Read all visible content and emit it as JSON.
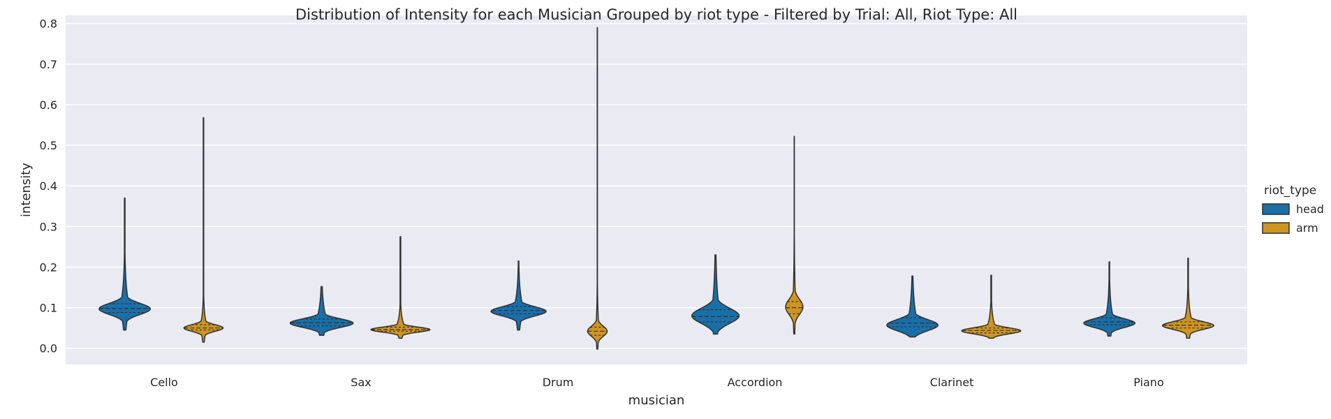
{
  "chart_data": {
    "type": "violin",
    "title": "Distribution of Intensity for each Musician Grouped by riot type - Filtered by Trial: All, Riot Type: All",
    "xlabel": "musician",
    "ylabel": "intensity",
    "ylim": [
      -0.04,
      0.82
    ],
    "yticks": [
      0.0,
      0.1,
      0.2,
      0.3,
      0.4,
      0.5,
      0.6,
      0.7,
      0.8
    ],
    "ytick_labels": [
      "0.0",
      "0.1",
      "0.2",
      "0.3",
      "0.4",
      "0.5",
      "0.6",
      "0.7",
      "0.8"
    ],
    "categories": [
      "Cello",
      "Sax",
      "Drum",
      "Accordion",
      "Clarinet",
      "Piano"
    ],
    "grid": true,
    "legend": {
      "title": "riot_type",
      "placement": "right",
      "entries": [
        {
          "name": "head",
          "color": "#1f77b4"
        },
        {
          "name": "arm",
          "color": "#d19a26"
        }
      ]
    },
    "colors": {
      "head": "#1a6fa8",
      "arm": "#cf9522",
      "background": "#eaeaf2",
      "grid": "#ffffff",
      "outline": "#2f2f2f"
    },
    "series": [
      {
        "name": "head",
        "violins": [
          {
            "min": 0.045,
            "q1": 0.088,
            "median": 0.098,
            "q3": 0.11,
            "max": 0.37,
            "mode": 0.097,
            "width": 0.65
          },
          {
            "min": 0.032,
            "q1": 0.055,
            "median": 0.063,
            "q3": 0.072,
            "max": 0.152,
            "mode": 0.062,
            "width": 0.8
          },
          {
            "min": 0.045,
            "q1": 0.085,
            "median": 0.093,
            "q3": 0.103,
            "max": 0.215,
            "mode": 0.091,
            "width": 0.7
          },
          {
            "min": 0.035,
            "q1": 0.065,
            "median": 0.078,
            "q3": 0.095,
            "max": 0.23,
            "mode": 0.08,
            "width": 0.6
          },
          {
            "min": 0.028,
            "q1": 0.053,
            "median": 0.062,
            "q3": 0.075,
            "max": 0.178,
            "mode": 0.057,
            "width": 0.65
          },
          {
            "min": 0.03,
            "q1": 0.058,
            "median": 0.065,
            "q3": 0.075,
            "max": 0.213,
            "mode": 0.062,
            "width": 0.65
          }
        ]
      },
      {
        "name": "arm",
        "violins": [
          {
            "min": 0.015,
            "q1": 0.045,
            "median": 0.05,
            "q3": 0.058,
            "max": 0.568,
            "mode": 0.05,
            "width": 0.5
          },
          {
            "min": 0.025,
            "q1": 0.042,
            "median": 0.046,
            "q3": 0.052,
            "max": 0.275,
            "mode": 0.046,
            "width": 0.75
          },
          {
            "min": -0.002,
            "q1": 0.032,
            "median": 0.042,
            "q3": 0.052,
            "max": 0.79,
            "mode": 0.042,
            "width": 0.25
          },
          {
            "min": 0.035,
            "q1": 0.085,
            "median": 0.1,
            "q3": 0.115,
            "max": 0.522,
            "mode": 0.102,
            "width": 0.22
          },
          {
            "min": 0.025,
            "q1": 0.038,
            "median": 0.044,
            "q3": 0.05,
            "max": 0.18,
            "mode": 0.043,
            "width": 0.75
          },
          {
            "min": 0.025,
            "q1": 0.05,
            "median": 0.057,
            "q3": 0.065,
            "max": 0.222,
            "mode": 0.056,
            "width": 0.65
          }
        ]
      }
    ]
  }
}
